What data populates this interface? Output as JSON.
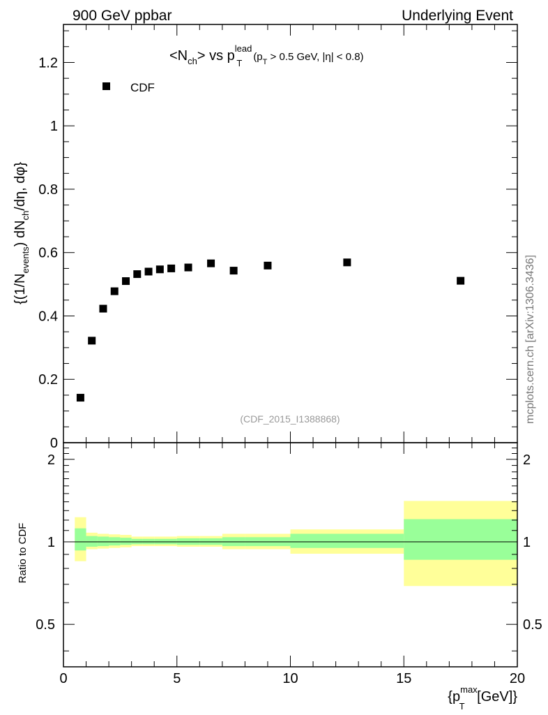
{
  "header": {
    "energy": "900 GeV ppbar",
    "category": "Underlying Event"
  },
  "watermark": {
    "site": "mcplots.cern.ch [arXiv:1306.3436]",
    "analysis": "(CDF_2015_I1388868)"
  },
  "colors": {
    "band_inner": "#99ff99",
    "band_outer": "#ffff99",
    "marker": "#000000",
    "analysis_label": "#999999",
    "site_label": "#777777"
  },
  "chart_data": [
    {
      "type": "scatter",
      "title": "<N_ch> vs p_T^lead (p_T > 0.5 GeV, |η| < 0.8)",
      "title_parts": {
        "n": "<N",
        "n_sub": "ch",
        "vs": "> vs p",
        "pt_sup": "lead",
        "pt_sub": "T",
        "cut_p": "(p",
        "cut_p_sub": "T",
        "cut_rest": " > 0.5 GeV, |η| < 0.8)"
      },
      "ylabel": "{(1/N_events) dN_ch/dη, dφ}",
      "ylabel_parts": {
        "a": "{(1/N",
        "a_sub": "events",
        "b": ") dN",
        "b_sub": "ch",
        "c": "/dη, dφ}"
      },
      "xlim": [
        0,
        20
      ],
      "ylim": [
        0,
        1.32
      ],
      "yticks": [
        0,
        0.2,
        0.4,
        0.6,
        0.8,
        1,
        1.2
      ],
      "ytick_labels": [
        "0",
        "0.2",
        "0.4",
        "0.6",
        "0.8",
        "1",
        "1.2"
      ],
      "legend": {
        "entries": [
          "CDF"
        ],
        "position": "top-left"
      },
      "series": [
        {
          "name": "CDF",
          "x": [
            0.75,
            1.25,
            1.75,
            2.25,
            2.75,
            3.25,
            3.75,
            4.25,
            4.75,
            5.5,
            6.5,
            7.5,
            9.0,
            12.5,
            17.5
          ],
          "y": [
            0.142,
            0.322,
            0.423,
            0.478,
            0.51,
            0.532,
            0.54,
            0.547,
            0.55,
            0.553,
            0.566,
            0.543,
            0.559,
            0.569,
            0.511
          ]
        }
      ]
    },
    {
      "type": "area",
      "title": "",
      "ylabel": "Ratio to CDF",
      "xlabel": "{p_T^max [GeV]}",
      "xlabel_parts": {
        "a": "{p",
        "sup": "max",
        "sub": "T",
        "b": " [GeV]}"
      },
      "xlim": [
        0,
        20
      ],
      "ylim": [
        0.35,
        2.3
      ],
      "yscale": "log",
      "xticks": [
        0,
        5,
        10,
        15,
        20
      ],
      "xtick_labels": [
        "0",
        "5",
        "10",
        "15",
        "20"
      ],
      "yticks": [
        0.5,
        1,
        2
      ],
      "ytick_labels": [
        "0.5",
        "1",
        "2"
      ],
      "reference_line": 1,
      "bins": [
        {
          "x": [
            0.5,
            1.0
          ],
          "inner": [
            0.93,
            1.12
          ],
          "outer": [
            0.85,
            1.23
          ]
        },
        {
          "x": [
            1.0,
            1.5
          ],
          "inner": [
            0.96,
            1.05
          ],
          "outer": [
            0.94,
            1.08
          ]
        },
        {
          "x": [
            1.5,
            2.0
          ],
          "inner": [
            0.965,
            1.045
          ],
          "outer": [
            0.945,
            1.07
          ]
        },
        {
          "x": [
            2.0,
            2.5
          ],
          "inner": [
            0.97,
            1.04
          ],
          "outer": [
            0.95,
            1.065
          ]
        },
        {
          "x": [
            2.5,
            3.0
          ],
          "inner": [
            0.975,
            1.035
          ],
          "outer": [
            0.955,
            1.06
          ]
        },
        {
          "x": [
            3.0,
            3.5
          ],
          "inner": [
            0.98,
            1.025
          ],
          "outer": [
            0.965,
            1.045
          ]
        },
        {
          "x": [
            3.5,
            4.0
          ],
          "inner": [
            0.98,
            1.025
          ],
          "outer": [
            0.965,
            1.045
          ]
        },
        {
          "x": [
            4.0,
            4.5
          ],
          "inner": [
            0.98,
            1.025
          ],
          "outer": [
            0.965,
            1.045
          ]
        },
        {
          "x": [
            4.5,
            5.0
          ],
          "inner": [
            0.98,
            1.025
          ],
          "outer": [
            0.965,
            1.045
          ]
        },
        {
          "x": [
            5.0,
            6.0
          ],
          "inner": [
            0.975,
            1.03
          ],
          "outer": [
            0.96,
            1.05
          ]
        },
        {
          "x": [
            6.0,
            7.0
          ],
          "inner": [
            0.975,
            1.03
          ],
          "outer": [
            0.96,
            1.05
          ]
        },
        {
          "x": [
            7.0,
            8.0
          ],
          "inner": [
            0.965,
            1.04
          ],
          "outer": [
            0.94,
            1.07
          ]
        },
        {
          "x": [
            8.0,
            10.0
          ],
          "inner": [
            0.965,
            1.04
          ],
          "outer": [
            0.94,
            1.07
          ]
        },
        {
          "x": [
            10.0,
            15.0
          ],
          "inner": [
            0.95,
            1.07
          ],
          "outer": [
            0.905,
            1.11
          ]
        },
        {
          "x": [
            15.0,
            20.0
          ],
          "inner": [
            0.86,
            1.21
          ],
          "outer": [
            0.69,
            1.41
          ]
        }
      ]
    }
  ]
}
